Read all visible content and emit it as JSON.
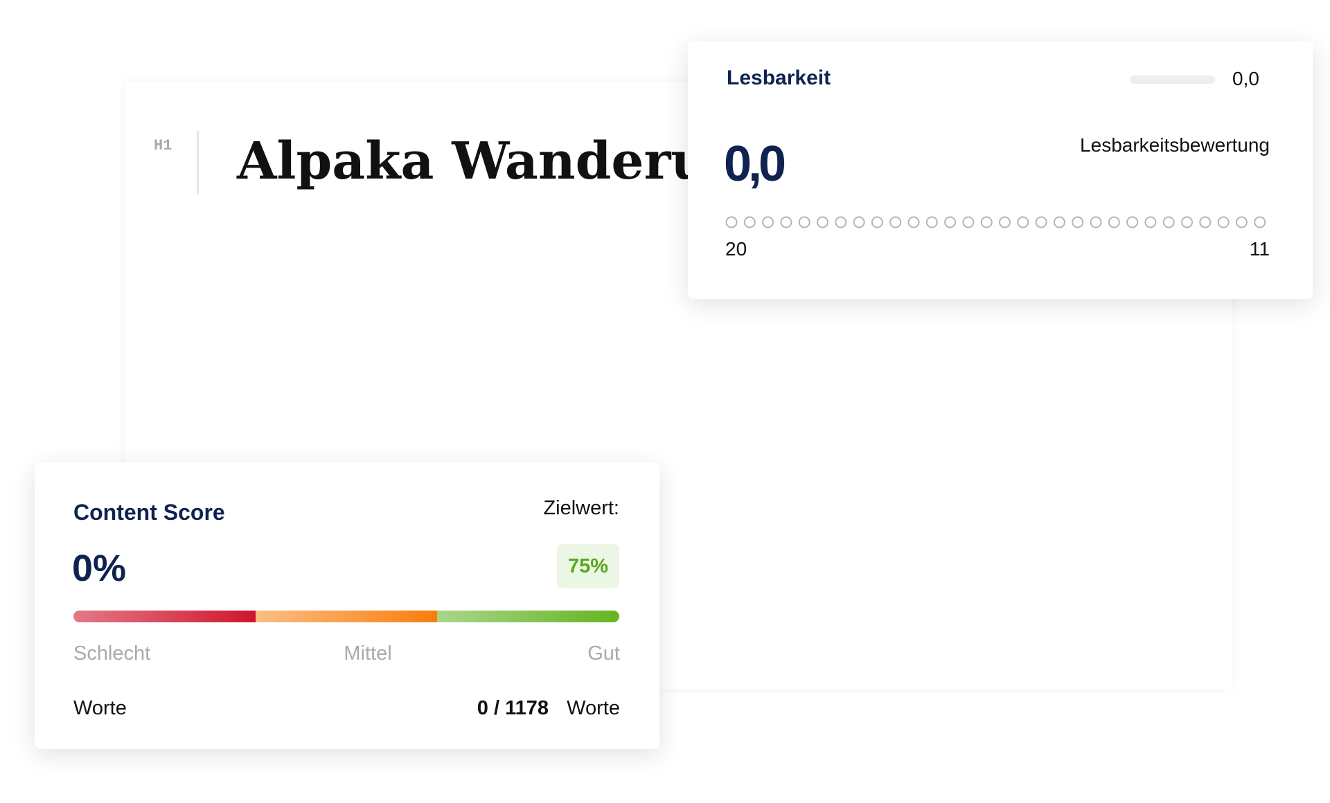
{
  "editor": {
    "heading_tag": "H1",
    "title": "Alpaka Wanderung"
  },
  "readability": {
    "title": "Lesbarkeit",
    "mini_value": "0,0",
    "subtitle": "Lesbarkeitsbewertung",
    "score": "0,0",
    "scale_start": "20",
    "scale_end": "11"
  },
  "content_score": {
    "title": "Content Score",
    "target_label": "Zielwert:",
    "score": "0%",
    "target": "75%",
    "levels": [
      "Schlecht",
      "Mittel",
      "Gut"
    ],
    "words_label": "Worte",
    "words_count": "0 / 1178",
    "words_unit": "Worte"
  }
}
